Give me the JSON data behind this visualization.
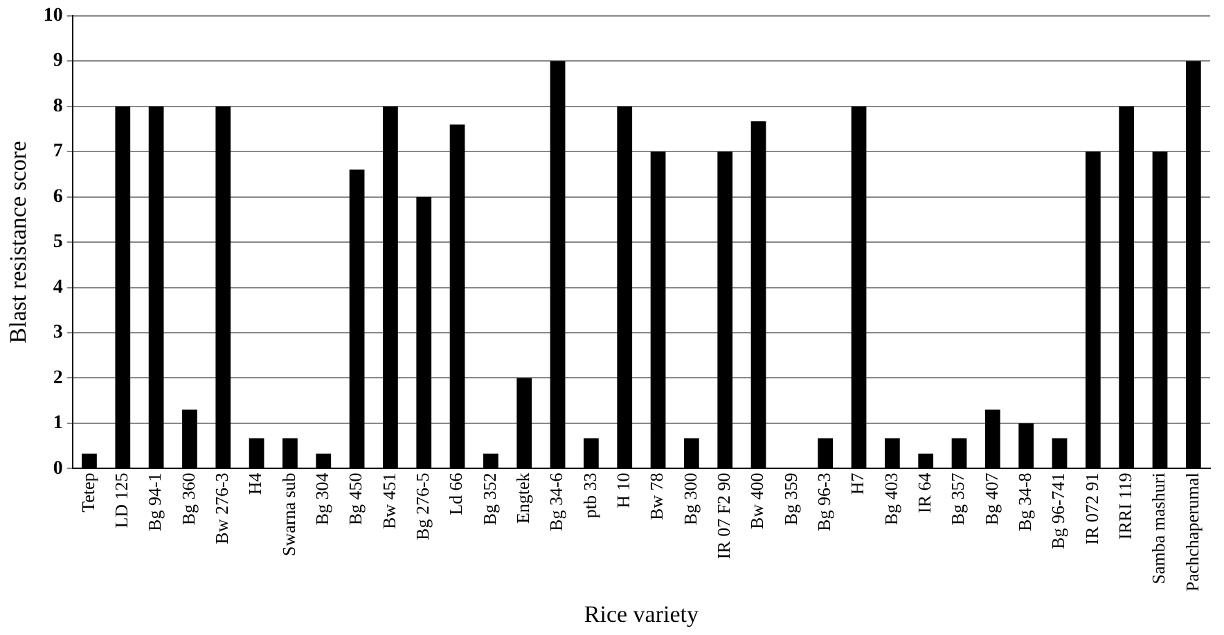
{
  "chart_data": {
    "type": "bar",
    "xlabel": "Rice variety",
    "ylabel": "Blast resistance score",
    "categories": [
      "Tetep",
      "LD 125",
      "Bg 94-1",
      "Bg 360",
      "Bw 276-3",
      "H4",
      "Swarna sub",
      "Bg 304",
      "Bg 450",
      "Bw 451",
      "Bg 276-5",
      "Ld 66",
      "Bg 352",
      "Engtek",
      "Bg 34-6",
      "ptb 33",
      "H 10",
      "Bw 78",
      "Bg 300",
      "IR 07 F2 90",
      "Bw 400",
      "Bg 359",
      "Bg 96-3",
      "H7",
      "Bg 403",
      "IR 64",
      "Bg 357",
      "Bg 407",
      "Bg 34-8",
      "Bg 96-741",
      "IR 072 91",
      "IRRI 119",
      "Samba mashuri",
      "Pachchaperumal"
    ],
    "values": [
      0.33,
      8,
      8,
      1.3,
      8,
      0.67,
      0.67,
      0.33,
      6.6,
      8,
      6,
      7.6,
      0.33,
      2,
      9,
      0.67,
      8,
      7,
      0.67,
      7,
      7.67,
      0,
      0.67,
      8,
      0.67,
      0.33,
      0.67,
      1.3,
      1,
      0.67,
      7,
      8,
      7,
      9
    ],
    "color": "#000000",
    "ylim": [
      0,
      10
    ],
    "yticks": [
      0,
      1,
      2,
      3,
      4,
      5,
      6,
      7,
      8,
      9,
      10
    ],
    "grid": "y"
  }
}
